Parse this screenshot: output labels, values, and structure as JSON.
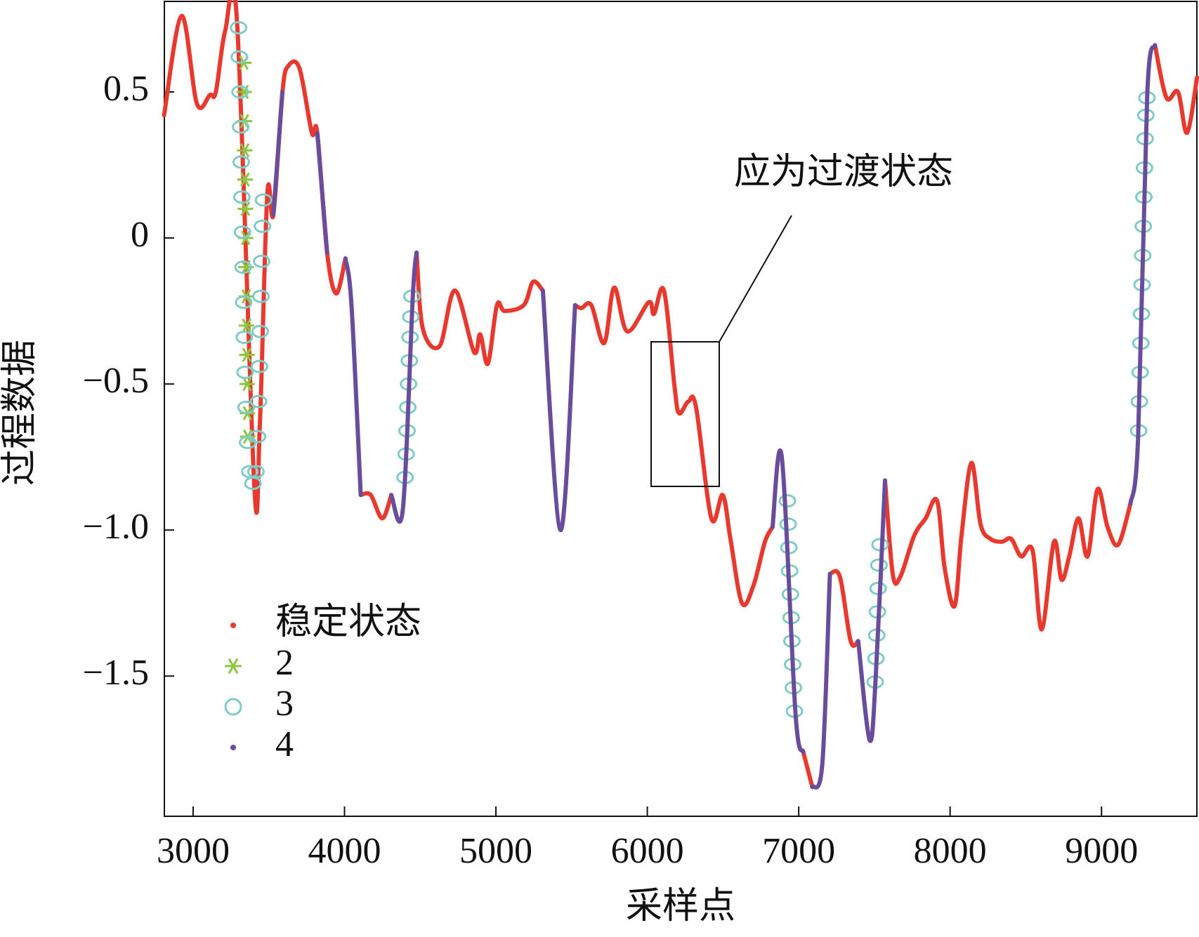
{
  "chart_data": {
    "type": "line",
    "xlabel": "采样点",
    "ylabel": "过程数据",
    "xlim": [
      2810,
      9630
    ],
    "ylim": [
      -1.98,
      0.81
    ],
    "xticks": [
      3000,
      4000,
      5000,
      6000,
      7000,
      8000,
      9000
    ],
    "yticks": [
      0.5,
      0,
      {
        "value": -0.5,
        "label": "−0.5"
      },
      {
        "value": -1.0,
        "label": "−1.0"
      },
      {
        "value": -1.5,
        "label": "−1.5"
      }
    ],
    "legend": "lower left",
    "annotation": "应为过渡状态",
    "series": [
      {
        "name": "稳定状态",
        "color": "#e8392e",
        "marker": "line",
        "x": [
          2808,
          2924,
          3025,
          3111,
          3150,
          3212,
          3290,
          3404,
          3440,
          3490,
          3530,
          3590,
          3630,
          3703,
          3784,
          3820,
          3885,
          3945,
          4006,
          4046,
          4107,
          4173,
          4249,
          4309,
          4385,
          4451,
          4476,
          4517,
          4628,
          4729,
          4855,
          4896,
          4947,
          5007,
          5058,
          5184,
          5245,
          5310,
          5427,
          5523,
          5564,
          5630,
          5715,
          5781,
          5867,
          6009,
          6044,
          6110,
          6180,
          6210,
          6271,
          6322,
          6423,
          6498,
          6549,
          6625,
          6701,
          6777,
          6827,
          6888,
          6979,
          7030,
          7090,
          7156,
          7206,
          7272,
          7343,
          7393,
          7469,
          7510,
          7570,
          7621,
          7671,
          7762,
          7838,
          7914,
          7964,
          8030,
          8075,
          8141,
          8201,
          8266,
          8342,
          8403,
          8469,
          8545,
          8605,
          8686,
          8736,
          8787,
          8848,
          8908,
          8974,
          9040,
          9110,
          9191,
          9242,
          9302,
          9353,
          9429,
          9505,
          9565,
          9631
        ],
        "values": [
          0.42,
          0.76,
          0.46,
          0.49,
          0.5,
          0.71,
          0.74,
          -0.85,
          -0.65,
          0.15,
          0.08,
          0.5,
          0.59,
          0.58,
          0.36,
          0.36,
          -0.05,
          -0.19,
          -0.07,
          null,
          -0.88,
          -0.88,
          -0.96,
          -0.88,
          null,
          null,
          -0.05,
          -0.31,
          -0.37,
          -0.18,
          -0.39,
          -0.33,
          -0.43,
          -0.23,
          -0.25,
          -0.23,
          -0.15,
          -0.18,
          null,
          -0.23,
          -0.24,
          -0.23,
          -0.36,
          -0.17,
          -0.32,
          -0.22,
          -0.26,
          -0.18,
          -0.51,
          -0.6,
          -0.56,
          -0.58,
          -0.96,
          -0.88,
          -1.03,
          -1.25,
          -1.19,
          -1.04,
          -0.99,
          null,
          null,
          -1.76,
          -1.88,
          null,
          -1.15,
          -1.16,
          -1.38,
          -1.38,
          null,
          null,
          -0.83,
          -1.15,
          -1.16,
          -1.02,
          -0.96,
          -0.9,
          -1.13,
          -1.26,
          -1.02,
          -0.77,
          -0.98,
          -1.03,
          -1.04,
          -1.03,
          -1.09,
          -1.07,
          -1.34,
          -1.04,
          -1.17,
          -1.09,
          -0.96,
          -1.09,
          -0.86,
          -0.99,
          -1.05,
          -0.91,
          null,
          null,
          0.66,
          0.48,
          0.5,
          0.36,
          0.55
        ]
      },
      {
        "name": "2",
        "color": "#8cc63f",
        "marker": "asterisk",
        "x": [
          3335,
          3337,
          3339,
          3341,
          3343,
          3345,
          3347,
          3349,
          3351,
          3353,
          3355,
          3357,
          3359,
          3361
        ],
        "values": [
          0.6,
          0.5,
          0.4,
          0.3,
          0.2,
          0.1,
          0.0,
          -0.1,
          -0.2,
          -0.3,
          -0.4,
          -0.5,
          -0.6,
          -0.68
        ]
      },
      {
        "name": "3",
        "color": "#7ecbc8",
        "marker": "circle",
        "x": [
          3300,
          3305,
          3310,
          3314,
          3318,
          3322,
          3326,
          3330,
          3334,
          3338,
          3343,
          3350,
          3360,
          3375,
          3395,
          3415,
          3425,
          3432,
          3438,
          3443,
          3448,
          3453,
          3458,
          3465,
          4400,
          4407,
          4413,
          4418,
          4423,
          4428,
          4433,
          4438,
          4445,
          6925,
          6930,
          6935,
          6940,
          6945,
          6950,
          6955,
          6960,
          6965,
          6972,
          7505,
          7510,
          7515,
          7520,
          7525,
          7530,
          7537,
          9245,
          9250,
          9255,
          9260,
          9264,
          9268,
          9272,
          9276,
          9280,
          9284,
          9288,
          9293,
          9300
        ],
        "values": [
          0.72,
          0.62,
          0.5,
          0.38,
          0.26,
          0.14,
          0.02,
          -0.1,
          -0.22,
          -0.34,
          -0.46,
          -0.58,
          -0.7,
          -0.8,
          -0.84,
          -0.8,
          -0.68,
          -0.56,
          -0.44,
          -0.32,
          -0.2,
          -0.08,
          0.04,
          0.13,
          -0.82,
          -0.74,
          -0.66,
          -0.58,
          -0.5,
          -0.42,
          -0.34,
          -0.27,
          -0.2,
          -0.9,
          -0.98,
          -1.06,
          -1.14,
          -1.22,
          -1.3,
          -1.38,
          -1.46,
          -1.54,
          -1.62,
          -1.52,
          -1.44,
          -1.36,
          -1.28,
          -1.2,
          -1.12,
          -1.05,
          -0.66,
          -0.56,
          -0.46,
          -0.36,
          -0.26,
          -0.16,
          -0.06,
          0.04,
          0.14,
          0.24,
          0.34,
          0.42,
          0.48
        ]
      },
      {
        "name": "4",
        "color": "#6a4c9c",
        "marker": "line",
        "x": [
          3530,
          3590,
          null,
          3820,
          3885,
          null,
          4006,
          4046,
          4107,
          null,
          4309,
          4385,
          4451,
          4476,
          null,
          5310,
          5427,
          5523,
          null,
          6827,
          6888,
          6979,
          7030,
          null,
          7090,
          7156,
          7206,
          null,
          7393,
          7469,
          7510,
          7570,
          null,
          9191,
          9242,
          9302,
          9353
        ],
        "values": [
          0.08,
          0.5,
          null,
          0.36,
          -0.05,
          null,
          -0.07,
          -0.23,
          -0.88,
          null,
          -0.88,
          -0.93,
          -0.2,
          -0.05,
          null,
          -0.18,
          -1.0,
          -0.23,
          null,
          -0.99,
          -0.75,
          -1.63,
          -1.76,
          null,
          -1.88,
          -1.8,
          -1.15,
          null,
          -1.38,
          -1.72,
          -1.49,
          -0.83,
          null,
          -0.91,
          -0.68,
          0.49,
          0.66
        ]
      }
    ]
  }
}
